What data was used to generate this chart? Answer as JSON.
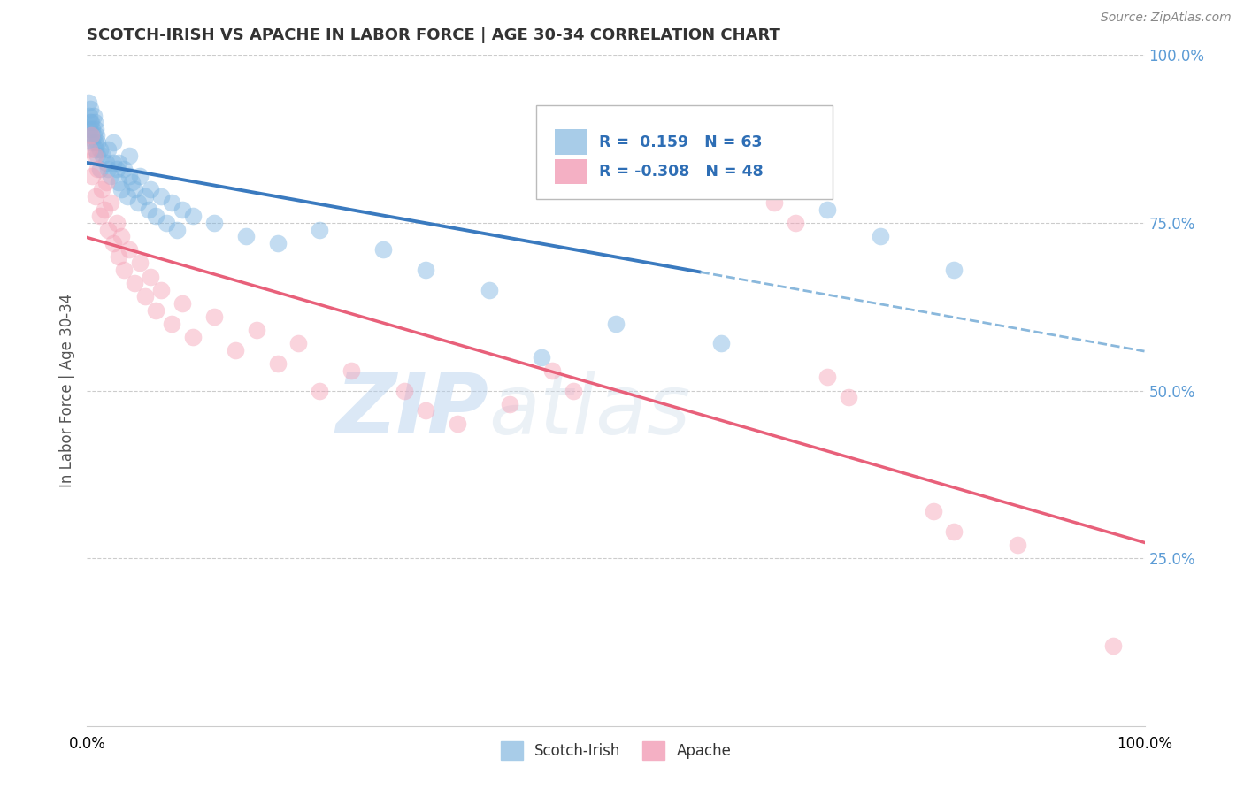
{
  "title": "SCOTCH-IRISH VS APACHE IN LABOR FORCE | AGE 30-34 CORRELATION CHART",
  "source_text": "Source: ZipAtlas.com",
  "ylabel": "In Labor Force | Age 30-34",
  "xlim": [
    0.0,
    1.0
  ],
  "ylim": [
    0.0,
    1.0
  ],
  "y_tick_positions_right": [
    1.0,
    0.75,
    0.5,
    0.25
  ],
  "scotch_irish_color": "#7ab3e0",
  "apache_color": "#f4a0b5",
  "scotch_irish_R": 0.159,
  "scotch_irish_N": 63,
  "apache_R": -0.308,
  "apache_N": 48,
  "legend_label_1": "Scotch-Irish",
  "legend_label_2": "Apache",
  "watermark_zip": "ZIP",
  "watermark_atlas": "atlas",
  "background_color": "#ffffff",
  "grid_color": "#cccccc",
  "scotch_irish_points": [
    [
      0.001,
      0.93
    ],
    [
      0.002,
      0.91
    ],
    [
      0.002,
      0.89
    ],
    [
      0.003,
      0.9
    ],
    [
      0.003,
      0.92
    ],
    [
      0.004,
      0.88
    ],
    [
      0.004,
      0.9
    ],
    [
      0.005,
      0.89
    ],
    [
      0.005,
      0.87
    ],
    [
      0.006,
      0.91
    ],
    [
      0.006,
      0.88
    ],
    [
      0.007,
      0.9
    ],
    [
      0.007,
      0.87
    ],
    [
      0.008,
      0.89
    ],
    [
      0.008,
      0.86
    ],
    [
      0.009,
      0.88
    ],
    [
      0.01,
      0.87
    ],
    [
      0.01,
      0.85
    ],
    [
      0.012,
      0.86
    ],
    [
      0.012,
      0.83
    ],
    [
      0.015,
      0.85
    ],
    [
      0.018,
      0.84
    ],
    [
      0.02,
      0.83
    ],
    [
      0.02,
      0.86
    ],
    [
      0.022,
      0.82
    ],
    [
      0.025,
      0.84
    ],
    [
      0.025,
      0.87
    ],
    [
      0.028,
      0.83
    ],
    [
      0.03,
      0.81
    ],
    [
      0.03,
      0.84
    ],
    [
      0.032,
      0.8
    ],
    [
      0.035,
      0.83
    ],
    [
      0.038,
      0.79
    ],
    [
      0.04,
      0.82
    ],
    [
      0.04,
      0.85
    ],
    [
      0.042,
      0.81
    ],
    [
      0.045,
      0.8
    ],
    [
      0.048,
      0.78
    ],
    [
      0.05,
      0.82
    ],
    [
      0.055,
      0.79
    ],
    [
      0.058,
      0.77
    ],
    [
      0.06,
      0.8
    ],
    [
      0.065,
      0.76
    ],
    [
      0.07,
      0.79
    ],
    [
      0.075,
      0.75
    ],
    [
      0.08,
      0.78
    ],
    [
      0.085,
      0.74
    ],
    [
      0.09,
      0.77
    ],
    [
      0.1,
      0.76
    ],
    [
      0.12,
      0.75
    ],
    [
      0.15,
      0.73
    ],
    [
      0.18,
      0.72
    ],
    [
      0.22,
      0.74
    ],
    [
      0.28,
      0.71
    ],
    [
      0.32,
      0.68
    ],
    [
      0.38,
      0.65
    ],
    [
      0.43,
      0.55
    ],
    [
      0.5,
      0.6
    ],
    [
      0.6,
      0.57
    ],
    [
      0.68,
      0.8
    ],
    [
      0.7,
      0.77
    ],
    [
      0.75,
      0.73
    ],
    [
      0.82,
      0.68
    ]
  ],
  "apache_points": [
    [
      0.002,
      0.86
    ],
    [
      0.004,
      0.88
    ],
    [
      0.005,
      0.82
    ],
    [
      0.007,
      0.85
    ],
    [
      0.008,
      0.79
    ],
    [
      0.01,
      0.83
    ],
    [
      0.012,
      0.76
    ],
    [
      0.014,
      0.8
    ],
    [
      0.016,
      0.77
    ],
    [
      0.018,
      0.81
    ],
    [
      0.02,
      0.74
    ],
    [
      0.022,
      0.78
    ],
    [
      0.025,
      0.72
    ],
    [
      0.028,
      0.75
    ],
    [
      0.03,
      0.7
    ],
    [
      0.032,
      0.73
    ],
    [
      0.035,
      0.68
    ],
    [
      0.04,
      0.71
    ],
    [
      0.045,
      0.66
    ],
    [
      0.05,
      0.69
    ],
    [
      0.055,
      0.64
    ],
    [
      0.06,
      0.67
    ],
    [
      0.065,
      0.62
    ],
    [
      0.07,
      0.65
    ],
    [
      0.08,
      0.6
    ],
    [
      0.09,
      0.63
    ],
    [
      0.1,
      0.58
    ],
    [
      0.12,
      0.61
    ],
    [
      0.14,
      0.56
    ],
    [
      0.16,
      0.59
    ],
    [
      0.18,
      0.54
    ],
    [
      0.2,
      0.57
    ],
    [
      0.22,
      0.5
    ],
    [
      0.25,
      0.53
    ],
    [
      0.3,
      0.5
    ],
    [
      0.32,
      0.47
    ],
    [
      0.35,
      0.45
    ],
    [
      0.4,
      0.48
    ],
    [
      0.44,
      0.53
    ],
    [
      0.46,
      0.5
    ],
    [
      0.65,
      0.78
    ],
    [
      0.67,
      0.75
    ],
    [
      0.7,
      0.52
    ],
    [
      0.72,
      0.49
    ],
    [
      0.8,
      0.32
    ],
    [
      0.82,
      0.29
    ],
    [
      0.88,
      0.27
    ],
    [
      0.97,
      0.12
    ]
  ]
}
